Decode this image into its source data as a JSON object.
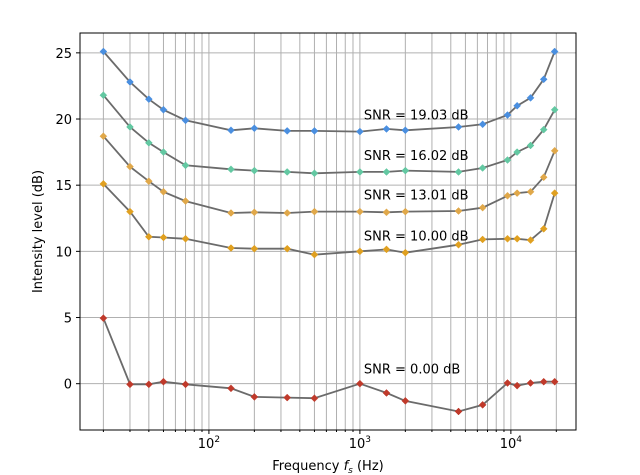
{
  "chart_data": {
    "type": "line",
    "title": "",
    "xlabel": "Frequency $f_s$ (Hz)",
    "ylabel": "Intensity level (dB)",
    "xscale": "log",
    "xlim": [
      14,
      27000
    ],
    "ylim": [
      -3.5,
      26.5
    ],
    "grid": true,
    "line_color": "#6b6b6b",
    "y_ticks": [
      0,
      5,
      10,
      15,
      20,
      25
    ],
    "x_ticks": [
      {
        "value": 100,
        "base": "10",
        "exp": "2"
      },
      {
        "value": 1000,
        "base": "10",
        "exp": "3"
      },
      {
        "value": 10000,
        "base": "10",
        "exp": "4"
      }
    ],
    "x": [
      20,
      30,
      40,
      50,
      70,
      140,
      200,
      330,
      500,
      1000,
      1500,
      2000,
      4500,
      6500,
      9500,
      11000,
      13500,
      16500,
      19500
    ],
    "series": [
      {
        "label": "SNR = 19.03 dB",
        "color": "#4a8fe0",
        "values": [
          25.1,
          22.8,
          21.5,
          20.7,
          19.9,
          19.15,
          19.3,
          19.1,
          19.1,
          19.05,
          19.25,
          19.15,
          19.4,
          19.6,
          20.3,
          21.0,
          21.6,
          23.0,
          25.1
        ]
      },
      {
        "label": "SNR = 16.02 dB",
        "color": "#63c8a2",
        "values": [
          21.8,
          19.4,
          18.2,
          17.5,
          16.5,
          16.2,
          16.1,
          16.0,
          15.9,
          16.0,
          16.0,
          16.1,
          16.0,
          16.3,
          16.9,
          17.5,
          18.0,
          19.2,
          20.7
        ]
      },
      {
        "label": "SNR = 13.01 dB",
        "color": "#e0a84a",
        "values": [
          18.7,
          16.4,
          15.3,
          14.5,
          13.8,
          12.9,
          12.95,
          12.9,
          13.0,
          13.0,
          12.95,
          13.0,
          13.05,
          13.3,
          14.2,
          14.4,
          14.5,
          15.6,
          17.6
        ]
      },
      {
        "label": "SNR = 10.00 dB",
        "color": "#e0a020",
        "values": [
          15.1,
          13.0,
          11.1,
          11.05,
          10.95,
          10.25,
          10.2,
          10.2,
          9.75,
          10.0,
          10.15,
          9.9,
          10.5,
          10.9,
          10.95,
          10.95,
          10.85,
          11.7,
          14.4
        ]
      },
      {
        "label": "SNR = 0.00 dB",
        "color": "#c03a2b",
        "values": [
          4.95,
          -0.05,
          -0.05,
          0.15,
          -0.05,
          -0.35,
          -1.0,
          -1.05,
          -1.1,
          0.0,
          -0.7,
          -1.3,
          -2.1,
          -1.6,
          0.05,
          -0.15,
          0.05,
          0.15,
          0.15
        ]
      }
    ]
  }
}
